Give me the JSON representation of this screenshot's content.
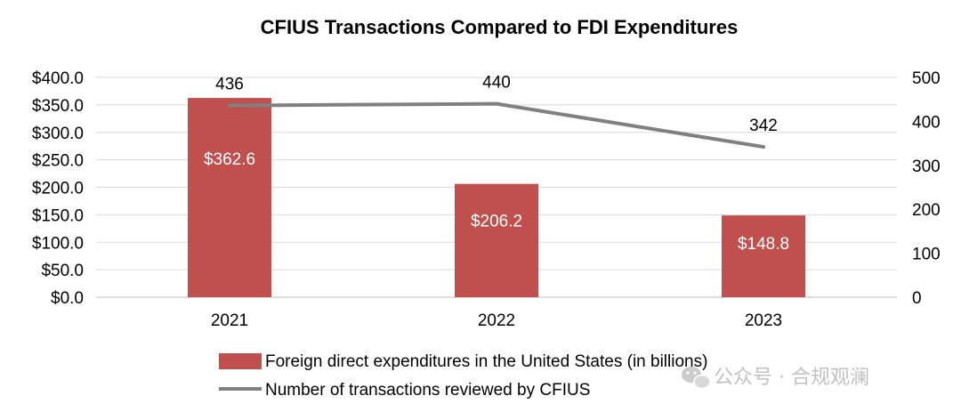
{
  "chart_data": {
    "type": "bar",
    "title": "CFIUS Transactions Compared to FDI Expenditures",
    "categories": [
      "2021",
      "2022",
      "2023"
    ],
    "series": [
      {
        "name": "Foreign direct expenditures in the United States (in billions)",
        "type": "bar",
        "axis": "left",
        "color": "#c0504d",
        "values": [
          362.6,
          206.2,
          148.8
        ],
        "labels": [
          "$362.6",
          "$206.2",
          "$148.8"
        ]
      },
      {
        "name": "Number of transactions reviewed by CFIUS",
        "type": "line",
        "axis": "right",
        "color": "#808080",
        "values": [
          436,
          440,
          342
        ],
        "labels": [
          "436",
          "440",
          "342"
        ]
      }
    ],
    "y_left": {
      "lim": [
        0,
        400
      ],
      "ticks": [
        0,
        50,
        100,
        150,
        200,
        250,
        300,
        350,
        400
      ],
      "tick_labels": [
        "$0.0",
        "$50.0",
        "$100.0",
        "$150.0",
        "$200.0",
        "$250.0",
        "$300.0",
        "$350.0",
        "$400.0"
      ]
    },
    "y_right": {
      "lim": [
        0,
        500
      ],
      "ticks": [
        0,
        100,
        200,
        300,
        400,
        500
      ],
      "tick_labels": [
        "0",
        "100",
        "200",
        "300",
        "400",
        "500"
      ]
    },
    "grid": true,
    "legend_position": "bottom"
  },
  "watermark": {
    "text": "公众号 · 合规观澜",
    "icon": "wechat-icon"
  }
}
